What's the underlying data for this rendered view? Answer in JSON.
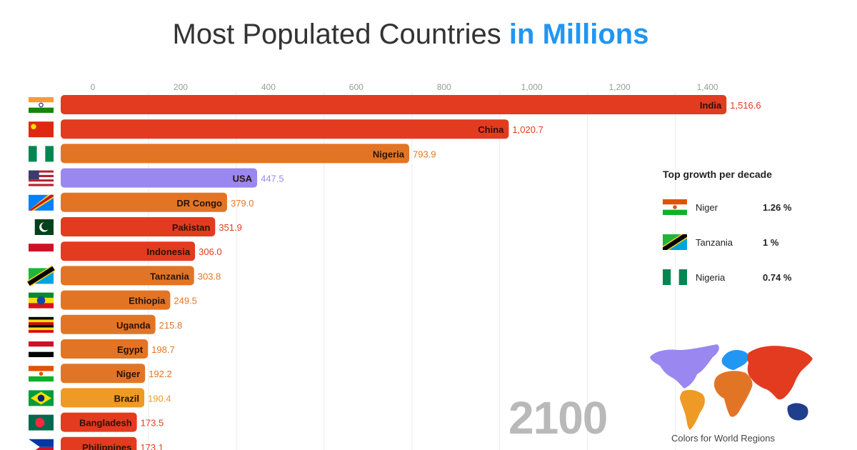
{
  "title": {
    "main": "Most Populated Countries",
    "highlight": "in Millions"
  },
  "year_label": "2100",
  "chart_data": {
    "type": "bar",
    "orientation": "horizontal",
    "title": "Most Populated Countries in Millions",
    "xlim": [
      0,
      1520
    ],
    "xticks": [
      0,
      200,
      400,
      600,
      800,
      1000,
      1200,
      1400
    ],
    "xtick_labels": [
      "0",
      "200",
      "400",
      "600",
      "800",
      "1,000",
      "1,200",
      "1,400"
    ],
    "grid": true,
    "categories": [
      "India",
      "China",
      "Nigeria",
      "USA",
      "DR Congo",
      "Pakistan",
      "Indonesia",
      "Tanzania",
      "Ethiopia",
      "Uganda",
      "Egypt",
      "Niger",
      "Brazil",
      "Bangladesh",
      "Philippines"
    ],
    "values": [
      1516.6,
      1020.7,
      793.9,
      447.5,
      379.0,
      351.9,
      306.0,
      303.8,
      249.5,
      215.8,
      198.7,
      192.2,
      190.4,
      173.5,
      173.1
    ],
    "value_labels": [
      "1,516.6",
      "1,020.7",
      "793.9",
      "447.5",
      "379.0",
      "351.9",
      "306.0",
      "303.8",
      "249.5",
      "215.8",
      "198.7",
      "192.2",
      "190.4",
      "173.5",
      "173.1"
    ],
    "colors": [
      "#e23b20",
      "#e23b20",
      "#e27525",
      "#9a87f0",
      "#e27525",
      "#e23b20",
      "#e23b20",
      "#e27525",
      "#e27525",
      "#e27525",
      "#e27525",
      "#e27525",
      "#ee9a25",
      "#e23b20",
      "#e23b20"
    ],
    "flags": [
      "india",
      "china",
      "nigeria",
      "usa",
      "drcongo",
      "pakistan",
      "indonesia",
      "tanzania",
      "ethiopia",
      "uganda",
      "egypt",
      "niger",
      "brazil",
      "bangladesh",
      "philippines"
    ]
  },
  "growth_panel": {
    "title": "Top growth per decade",
    "items": [
      {
        "name": "Niger",
        "value": "1.26 %",
        "flag": "niger"
      },
      {
        "name": "Tanzania",
        "value": "1 %",
        "flag": "tanzania"
      },
      {
        "name": "Nigeria",
        "value": "0.74 %",
        "flag": "nigeria"
      }
    ]
  },
  "map": {
    "caption": "Colors for World Regions",
    "regions": [
      {
        "name": "americas-north",
        "color": "#9a87f0"
      },
      {
        "name": "americas-south",
        "color": "#ee9a25"
      },
      {
        "name": "europe",
        "color": "#2196f3"
      },
      {
        "name": "africa",
        "color": "#e27525"
      },
      {
        "name": "asia",
        "color": "#e23b20"
      },
      {
        "name": "oceania",
        "color": "#1f3f8c"
      }
    ]
  }
}
